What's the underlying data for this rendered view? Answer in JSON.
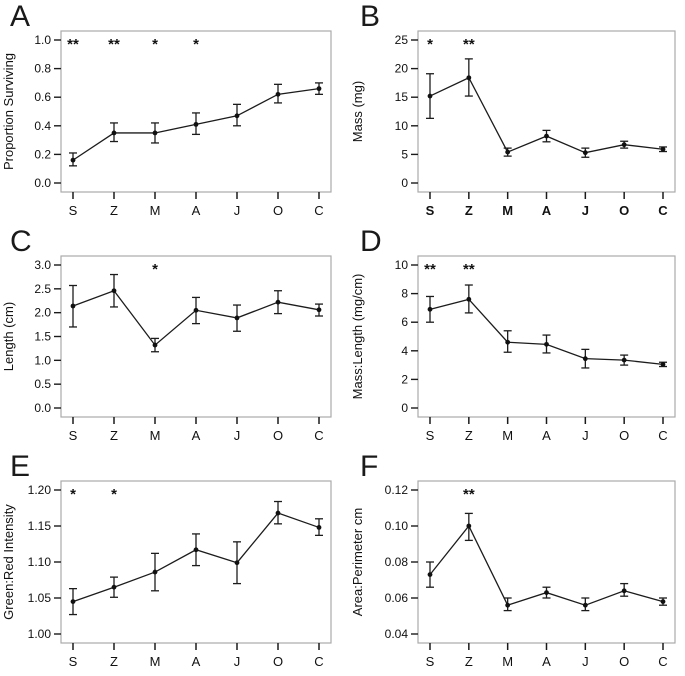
{
  "figure": {
    "panels": [
      "A",
      "B",
      "C",
      "D",
      "E",
      "F"
    ],
    "x_axis_categories": [
      "S",
      "Z",
      "M",
      "A",
      "J",
      "O",
      "C"
    ]
  },
  "colors": {
    "line": "#1c1c1c",
    "marker": "#111111",
    "box_border": "#ababab",
    "tick": "#1a1a1a",
    "text": "#111111",
    "background": "#ffffff"
  },
  "chart_data": [
    {
      "type": "line",
      "panel": "A",
      "ylabel": "Proportion Surviving",
      "ylim": [
        0.0,
        1.0
      ],
      "ytick_values": [
        0.0,
        0.2,
        0.4,
        0.6,
        0.8,
        1.0
      ],
      "ytick_labels": [
        "0.0",
        "0.2",
        "0.4",
        "0.6",
        "0.8",
        "1.0"
      ],
      "categories": [
        "S",
        "Z",
        "M",
        "A",
        "J",
        "O",
        "C"
      ],
      "values": [
        0.16,
        0.35,
        0.35,
        0.41,
        0.47,
        0.62,
        0.66
      ],
      "err_low": [
        0.12,
        0.29,
        0.28,
        0.34,
        0.4,
        0.56,
        0.62
      ],
      "err_high": [
        0.21,
        0.42,
        0.42,
        0.49,
        0.55,
        0.69,
        0.7
      ],
      "annotations": [
        {
          "category": "S",
          "text": "**"
        },
        {
          "category": "Z",
          "text": "**"
        },
        {
          "category": "M",
          "text": "*"
        },
        {
          "category": "A",
          "text": "*"
        }
      ],
      "x_labels_bold": false,
      "grid": false,
      "legend": "none"
    },
    {
      "type": "line",
      "panel": "B",
      "ylabel": "Mass (mg)",
      "ylim": [
        0,
        25
      ],
      "ytick_values": [
        0,
        5,
        10,
        15,
        20,
        25
      ],
      "ytick_labels": [
        "0",
        "5",
        "10",
        "15",
        "20",
        "25"
      ],
      "categories": [
        "S",
        "Z",
        "M",
        "A",
        "J",
        "O",
        "C"
      ],
      "values": [
        15.2,
        18.4,
        5.4,
        8.2,
        5.3,
        6.7,
        5.9
      ],
      "err_low": [
        11.3,
        15.2,
        4.7,
        7.2,
        4.5,
        6.1,
        5.5
      ],
      "err_high": [
        19.1,
        21.7,
        6.1,
        9.2,
        6.1,
        7.3,
        6.3
      ],
      "annotations": [
        {
          "category": "S",
          "text": "*"
        },
        {
          "category": "Z",
          "text": "**"
        }
      ],
      "x_labels_bold": true,
      "grid": false,
      "legend": "none"
    },
    {
      "type": "line",
      "panel": "C",
      "ylabel": "Length (cm)",
      "ylim": [
        0.0,
        3.0
      ],
      "ytick_values": [
        0.0,
        0.5,
        1.0,
        1.5,
        2.0,
        2.5,
        3.0
      ],
      "ytick_labels": [
        "0.0",
        "0.5",
        "1.0",
        "1.5",
        "2.0",
        "2.5",
        "3.0"
      ],
      "categories": [
        "S",
        "Z",
        "M",
        "A",
        "J",
        "O",
        "C"
      ],
      "values": [
        2.14,
        2.46,
        1.32,
        2.05,
        1.89,
        2.22,
        2.06
      ],
      "err_low": [
        1.7,
        2.12,
        1.18,
        1.77,
        1.61,
        1.98,
        1.93
      ],
      "err_high": [
        2.57,
        2.8,
        1.46,
        2.32,
        2.16,
        2.46,
        2.18
      ],
      "annotations": [
        {
          "category": "M",
          "text": "*"
        }
      ],
      "x_labels_bold": false,
      "grid": false,
      "legend": "none"
    },
    {
      "type": "line",
      "panel": "D",
      "ylabel": "Mass:Length (mg/cm)",
      "ylim": [
        0,
        10
      ],
      "ytick_values": [
        0,
        2,
        4,
        6,
        8,
        10
      ],
      "ytick_labels": [
        "0",
        "2",
        "4",
        "6",
        "8",
        "10"
      ],
      "categories": [
        "S",
        "Z",
        "M",
        "A",
        "J",
        "O",
        "C"
      ],
      "values": [
        6.9,
        7.6,
        4.6,
        4.45,
        3.45,
        3.35,
        3.05
      ],
      "err_low": [
        6.0,
        6.65,
        3.9,
        3.85,
        2.8,
        3.0,
        2.9
      ],
      "err_high": [
        7.8,
        8.6,
        5.4,
        5.1,
        4.1,
        3.7,
        3.2
      ],
      "annotations": [
        {
          "category": "S",
          "text": "**"
        },
        {
          "category": "Z",
          "text": "**"
        }
      ],
      "x_labels_bold": false,
      "grid": false,
      "legend": "none"
    },
    {
      "type": "line",
      "panel": "E",
      "ylabel": "Green:Red Intensity",
      "ylim": [
        1.0,
        1.2
      ],
      "ytick_values": [
        1.0,
        1.05,
        1.1,
        1.15,
        1.2
      ],
      "ytick_labels": [
        "1.00",
        "1.05",
        "1.10",
        "1.15",
        "1.20"
      ],
      "categories": [
        "S",
        "Z",
        "M",
        "A",
        "J",
        "O",
        "C"
      ],
      "values": [
        1.045,
        1.065,
        1.086,
        1.117,
        1.099,
        1.168,
        1.148
      ],
      "err_low": [
        1.027,
        1.051,
        1.06,
        1.095,
        1.07,
        1.153,
        1.137
      ],
      "err_high": [
        1.063,
        1.079,
        1.112,
        1.139,
        1.128,
        1.184,
        1.16
      ],
      "annotations": [
        {
          "category": "S",
          "text": "*"
        },
        {
          "category": "Z",
          "text": "*"
        }
      ],
      "x_labels_bold": false,
      "grid": false,
      "legend": "none"
    },
    {
      "type": "line",
      "panel": "F",
      "ylabel": "Area:Perimeter cm",
      "ylim": [
        0.04,
        0.12
      ],
      "ytick_values": [
        0.04,
        0.06,
        0.08,
        0.1,
        0.12
      ],
      "ytick_labels": [
        "0.04",
        "0.06",
        "0.08",
        "0.10",
        "0.12"
      ],
      "categories": [
        "S",
        "Z",
        "M",
        "A",
        "J",
        "O",
        "C"
      ],
      "values": [
        0.073,
        0.1,
        0.056,
        0.063,
        0.056,
        0.064,
        0.058
      ],
      "err_low": [
        0.066,
        0.092,
        0.053,
        0.06,
        0.053,
        0.061,
        0.056
      ],
      "err_high": [
        0.08,
        0.107,
        0.06,
        0.066,
        0.06,
        0.068,
        0.06
      ],
      "annotations": [
        {
          "category": "Z",
          "text": "**"
        }
      ],
      "x_labels_bold": false,
      "grid": false,
      "legend": "none"
    }
  ]
}
